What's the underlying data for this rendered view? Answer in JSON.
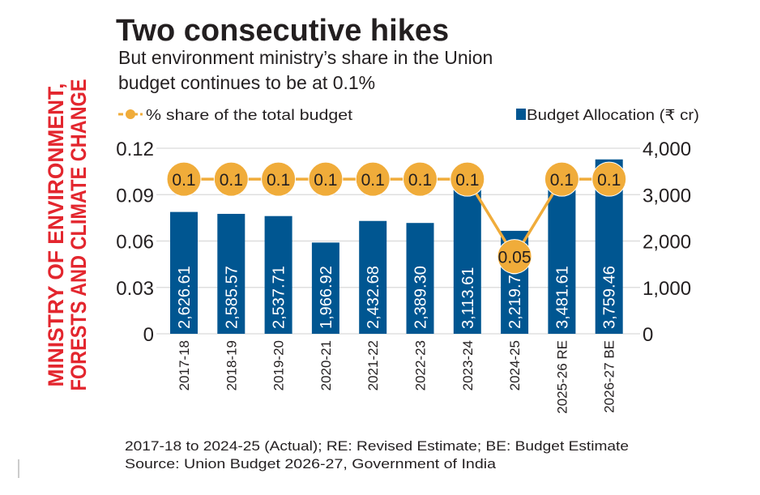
{
  "title": "Two consecutive hikes",
  "subtitle_lines": [
    "But environment ministry’s share in the Union",
    "budget continues to be at 0.1%"
  ],
  "side_label_lines": [
    "MINISTRY OF ENVIRONMENT,",
    "FORESTS AND CLIMATE CHANGE"
  ],
  "footnotes": [
    "2017-18 to 2024-25 (Actual); RE: Revised Estimate; BE: Budget Estimate",
    "Source: Union Budget 2026-27, Government of India"
  ],
  "colors": {
    "bar": "#005691",
    "line": "#f0ac3a",
    "side_label": "#e3262e",
    "grid": "#d9d9d9",
    "text": "#231f20"
  },
  "chart_data": {
    "type": "bar+line",
    "categories": [
      "2017-18",
      "2018-19",
      "2019-20",
      "2020-21",
      "2021-22",
      "2022-23",
      "2023-24",
      "2024-25",
      "2025-26 RE",
      "2026-27 BE"
    ],
    "series": [
      {
        "name": "Budget Allocation (₹ cr)",
        "type": "bar",
        "axis": "right",
        "values": [
          2626.61,
          2585.57,
          2537.71,
          1966.92,
          2432.68,
          2389.3,
          3113.61,
          2219.7,
          3481.61,
          3759.46
        ],
        "labels": [
          "2,626.61",
          "2,585.57",
          "2,537.71",
          "1,966.92",
          "2,432.68",
          "2,389.30",
          "3,113.61",
          "2,219.70",
          "3,481.61",
          "3,759.46"
        ]
      },
      {
        "name": "% share of the total budget",
        "type": "line",
        "axis": "left",
        "values": [
          0.1,
          0.1,
          0.1,
          0.1,
          0.1,
          0.1,
          0.1,
          0.05,
          0.1,
          0.1
        ],
        "labels": [
          "0.1",
          "0.1",
          "0.1",
          "0.1",
          "0.1",
          "0.1",
          "0.1",
          "0.05",
          "0.1",
          "0.1"
        ]
      }
    ],
    "y_left": {
      "range": [
        0,
        0.12
      ],
      "ticks": [
        "0",
        "0.03",
        "0.06",
        "0.09",
        "0.12"
      ]
    },
    "y_right": {
      "range": [
        0,
        4000
      ],
      "ticks": [
        "0",
        "1,000",
        "2,000",
        "3,000",
        "4,000"
      ]
    },
    "grid": true,
    "legend": "top"
  }
}
